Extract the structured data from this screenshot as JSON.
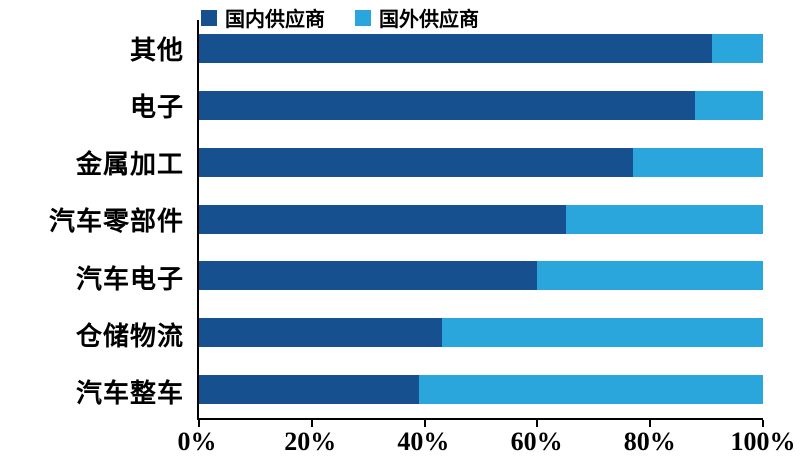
{
  "chart_data": {
    "type": "bar",
    "orientation": "horizontal",
    "stacked": true,
    "stack_total": 100,
    "title": "",
    "xlabel": "",
    "ylabel": "",
    "xlim": [
      0,
      100
    ],
    "x_ticks": [
      "0%",
      "20%",
      "40%",
      "60%",
      "80%",
      "100%"
    ],
    "grid": false,
    "legend_position": "top",
    "categories": [
      "其他",
      "电子",
      "金属加工",
      "汽车零部件",
      "汽车电子",
      "仓储物流",
      "汽车整车"
    ],
    "series": [
      {
        "name": "国内供应商",
        "key": "domestic",
        "color": "#17508f",
        "values": [
          91,
          88,
          77,
          65,
          60,
          43,
          39
        ]
      },
      {
        "name": "国外供应商",
        "key": "foreign",
        "color": "#2ba6dc",
        "values": [
          9,
          12,
          23,
          35,
          40,
          57,
          61
        ]
      }
    ]
  },
  "colors": {
    "domestic_blue": "#17508f",
    "foreign_blue": "#2ba6dc",
    "axis": "#000000",
    "background": "#ffffff",
    "text": "#000000"
  }
}
